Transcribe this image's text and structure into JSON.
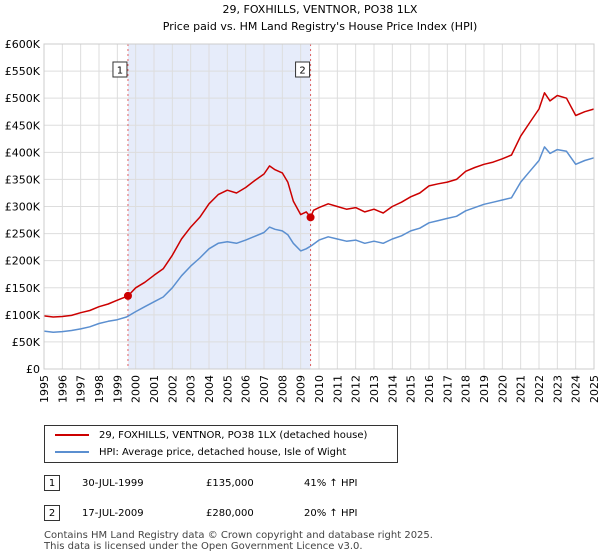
{
  "chart_data": {
    "type": "line",
    "title": "29, FOXHILLS, VENTNOR, PO38 1LX",
    "subtitle": "Price paid vs. HM Land Registry's House Price Index (HPI)",
    "xlim": [
      1995,
      2025
    ],
    "ylim": [
      0,
      600000
    ],
    "x_ticks": [
      1995,
      1996,
      1997,
      1998,
      1999,
      2000,
      2001,
      2002,
      2003,
      2004,
      2005,
      2006,
      2007,
      2008,
      2009,
      2010,
      2011,
      2012,
      2013,
      2014,
      2015,
      2016,
      2017,
      2018,
      2019,
      2020,
      2021,
      2022,
      2023,
      2024,
      2025
    ],
    "y_ticks": [
      {
        "value": 0,
        "label": "£0"
      },
      {
        "value": 50000,
        "label": "£50K"
      },
      {
        "value": 100000,
        "label": "£100K"
      },
      {
        "value": 150000,
        "label": "£150K"
      },
      {
        "value": 200000,
        "label": "£200K"
      },
      {
        "value": 250000,
        "label": "£250K"
      },
      {
        "value": 300000,
        "label": "£300K"
      },
      {
        "value": 350000,
        "label": "£350K"
      },
      {
        "value": 400000,
        "label": "£400K"
      },
      {
        "value": 450000,
        "label": "£450K"
      },
      {
        "value": 500000,
        "label": "£500K"
      },
      {
        "value": 550000,
        "label": "£550K"
      },
      {
        "value": 600000,
        "label": "£600K"
      }
    ],
    "grid": true,
    "shaded_region": [
      1999.58,
      2009.54
    ],
    "series": [
      {
        "name": "29, FOXHILLS, VENTNOR, PO38 1LX (detached house)",
        "color": "#cc0000",
        "x": [
          1995,
          1995.5,
          1996,
          1996.5,
          1997,
          1997.5,
          1998,
          1998.5,
          1999,
          1999.58,
          2000,
          2000.5,
          2001,
          2001.5,
          2002,
          2002.5,
          2003,
          2003.5,
          2004,
          2004.5,
          2005,
          2005.5,
          2006,
          2006.5,
          2007,
          2007.3,
          2007.6,
          2008,
          2008.3,
          2008.6,
          2009,
          2009.3,
          2009.54,
          2009.7,
          2010,
          2010.5,
          2011,
          2011.5,
          2012,
          2012.5,
          2013,
          2013.5,
          2014,
          2014.5,
          2015,
          2015.5,
          2016,
          2016.5,
          2017,
          2017.5,
          2018,
          2018.5,
          2019,
          2019.5,
          2020,
          2020.5,
          2021,
          2021.5,
          2022,
          2022.3,
          2022.6,
          2023,
          2023.5,
          2024,
          2024.5,
          2025
        ],
        "y": [
          98000,
          96000,
          97000,
          99000,
          104000,
          108000,
          115000,
          120000,
          127000,
          135000,
          150000,
          160000,
          173000,
          185000,
          210000,
          240000,
          262000,
          280000,
          305000,
          322000,
          330000,
          325000,
          335000,
          348000,
          360000,
          375000,
          368000,
          362000,
          345000,
          310000,
          285000,
          290000,
          280000,
          293000,
          298000,
          305000,
          300000,
          295000,
          298000,
          290000,
          295000,
          288000,
          300000,
          308000,
          318000,
          325000,
          338000,
          342000,
          345000,
          350000,
          365000,
          372000,
          378000,
          382000,
          388000,
          395000,
          430000,
          455000,
          480000,
          510000,
          495000,
          505000,
          500000,
          468000,
          475000,
          480000
        ]
      },
      {
        "name": "HPI: Average price, detached house, Isle of Wight",
        "color": "#5b8fd0",
        "x": [
          1995,
          1995.5,
          1996,
          1996.5,
          1997,
          1997.5,
          1998,
          1998.5,
          1999,
          1999.5,
          2000,
          2000.5,
          2001,
          2001.5,
          2002,
          2002.5,
          2003,
          2003.5,
          2004,
          2004.5,
          2005,
          2005.5,
          2006,
          2006.5,
          2007,
          2007.3,
          2007.6,
          2008,
          2008.3,
          2008.6,
          2009,
          2009.3,
          2009.6,
          2010,
          2010.5,
          2011,
          2011.5,
          2012,
          2012.5,
          2013,
          2013.5,
          2014,
          2014.5,
          2015,
          2015.5,
          2016,
          2016.5,
          2017,
          2017.5,
          2018,
          2018.5,
          2019,
          2019.5,
          2020,
          2020.5,
          2021,
          2021.5,
          2022,
          2022.3,
          2022.6,
          2023,
          2023.5,
          2024,
          2024.5,
          2025
        ],
        "y": [
          70000,
          68000,
          69000,
          71000,
          74000,
          78000,
          84000,
          88000,
          91000,
          96000,
          106000,
          115000,
          124000,
          133000,
          150000,
          172000,
          190000,
          205000,
          222000,
          232000,
          235000,
          232000,
          238000,
          245000,
          252000,
          262000,
          258000,
          255000,
          248000,
          232000,
          218000,
          222000,
          228000,
          238000,
          244000,
          240000,
          236000,
          238000,
          232000,
          236000,
          232000,
          240000,
          246000,
          255000,
          260000,
          270000,
          274000,
          278000,
          282000,
          292000,
          298000,
          304000,
          308000,
          312000,
          316000,
          345000,
          365000,
          385000,
          410000,
          398000,
          405000,
          402000,
          378000,
          385000,
          390000
        ]
      }
    ],
    "sales": [
      {
        "label": "1",
        "x": 1999.58,
        "y": 135000
      },
      {
        "label": "2",
        "x": 2009.54,
        "y": 280000
      }
    ]
  },
  "table": [
    {
      "num": "1",
      "date": "30-JUL-1999",
      "price": "£135,000",
      "hpi": "41% ↑ HPI"
    },
    {
      "num": "2",
      "date": "17-JUL-2009",
      "price": "£280,000",
      "hpi": "20% ↑ HPI"
    }
  ],
  "footer": {
    "line1": "Contains HM Land Registry data © Crown copyright and database right 2025.",
    "line2": "This data is licensed under the Open Government Licence v3.0."
  }
}
